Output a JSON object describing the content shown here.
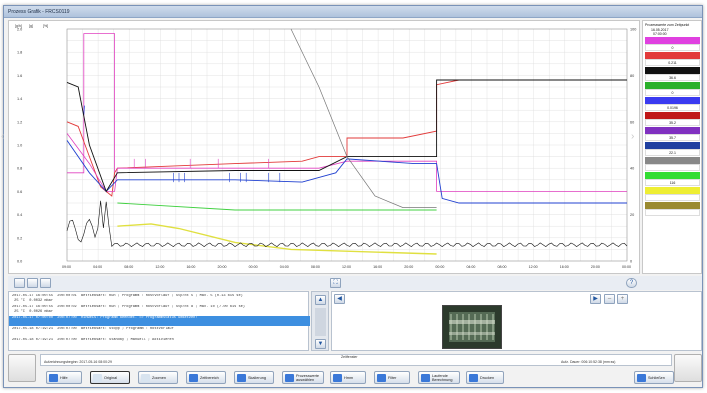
{
  "window": {
    "title": "Prozess Grafik - FRCS0119"
  },
  "chart": {
    "time_ticks": [
      "09:00",
      "04:00",
      "08:00",
      "12:00",
      "16:00",
      "20:00",
      "00:00",
      "04:00",
      "08:00",
      "12:00",
      "16:00",
      "20:00",
      "00:00",
      "04:00",
      "08:00",
      "12:00",
      "16:00",
      "20:00",
      "00:00"
    ],
    "y_ticks": [
      "2.0",
      "1.8",
      "1.6",
      "1.4",
      "1.2",
      "1.0",
      "0.8",
      "0.6",
      "0.4",
      "0.2",
      "0.0"
    ],
    "right_ticks": [
      "100",
      "80",
      "60",
      "40",
      "20",
      "0"
    ],
    "axis_headers": [
      "[g/h]",
      "[g]",
      "[%]"
    ],
    "colors": {
      "red": "#e23a3a",
      "pink": "#e040c0",
      "blue": "#2040d0",
      "black": "#111111",
      "green": "#40d040",
      "gray": "#777777",
      "yellow": "#e0e040",
      "purple": "#8030c0"
    }
  },
  "legend": {
    "header": "Prozesswerte zum Zeitpunkt",
    "time": "16.05.2017",
    "time2": "07:00:00",
    "rows": [
      {
        "label": "",
        "color": "#e040e0",
        "value": "0"
      },
      {
        "label": "",
        "color": "#e23a3a",
        "value": "0.211"
      },
      {
        "label": "",
        "color": "#111111",
        "value": "36.6"
      },
      {
        "label": "",
        "color": "#2bb02b",
        "value": "0"
      },
      {
        "label": "",
        "color": "#3a3af0",
        "value": "0.0196"
      },
      {
        "label": "",
        "color": "#c01818",
        "value": "35.2"
      },
      {
        "label": "",
        "color": "#8030c0",
        "value": "35.7"
      },
      {
        "label": "",
        "color": "#2040a0",
        "value": "22.1"
      },
      {
        "label": "",
        "color": "#888888",
        "value": ""
      },
      {
        "label": "",
        "color": "#33dd33",
        "value": "116"
      },
      {
        "label": "",
        "color": "#eeee33",
        "value": ""
      },
      {
        "label": "",
        "color": "#9a8a30",
        "value": ""
      }
    ]
  },
  "log": {
    "rows": [
      {
        "ts": "2017-05-17 16:00:55  200:00:01",
        "text": "Betriebsart: Run ; Programm : Rostvorlauf ; Stp/Rt 5 ; Max. 5 (0.13 bis se)\n 25 °C  0.0032 mbar"
      },
      {
        "ts": "2017-05-17 16:00:55  200:00:02",
        "text": "Betriebsart: Run ; Programm : Rostvorlauf ; Stp/Rt 8 ; Max. 10 (7.00 bis se)\n 25 °C  0.0026 mbar"
      },
      {
        "ts": "2017-05-17 07:00:00  200:07:00",
        "text": "Hinweis: Programm beendet. => Programmstatus umsetzen!"
      },
      {
        "ts": "2017-05-18 07:19:21  200:07:00",
        "text": "Betriebsart: Stopp ; Programm : Rostvorlauf"
      },
      {
        "ts": "2017-05-18 07:19:21  200:07:00",
        "text": "Betriebsart: Standby ; Manuell ; Aktivieren"
      }
    ]
  },
  "info": {
    "title": "Zeitfenster",
    "left": "Aufzeichnungsbeginn: 2017-05-16 08:00:29",
    "right": "Aufz. Dauer: 006:10:52:38 (mm:ss)"
  },
  "toolbar": {
    "buttons": [
      {
        "label": "Hilfe",
        "color": "#3a78d8"
      },
      {
        "label": "Original",
        "color": "#d8e4f0"
      },
      {
        "label": "Zoomen",
        "color": "#d8e4f0"
      },
      {
        "label": "Zeitbereich",
        "color": "#3a78d8"
      },
      {
        "label": "Skalierung",
        "color": "#3a78d8"
      },
      {
        "label": "Prozesswerte auswählen",
        "color": "#3a78d8"
      },
      {
        "label": "Hmm",
        "color": "#3a78d8"
      },
      {
        "label": "Filter",
        "color": "#3a78d8"
      },
      {
        "label": "Laufende Berechnung",
        "color": "#3a78d8"
      },
      {
        "label": "Drucken",
        "color": "#3a78d8"
      },
      {
        "label": "Schließen",
        "color": "#3a78d8"
      }
    ]
  }
}
